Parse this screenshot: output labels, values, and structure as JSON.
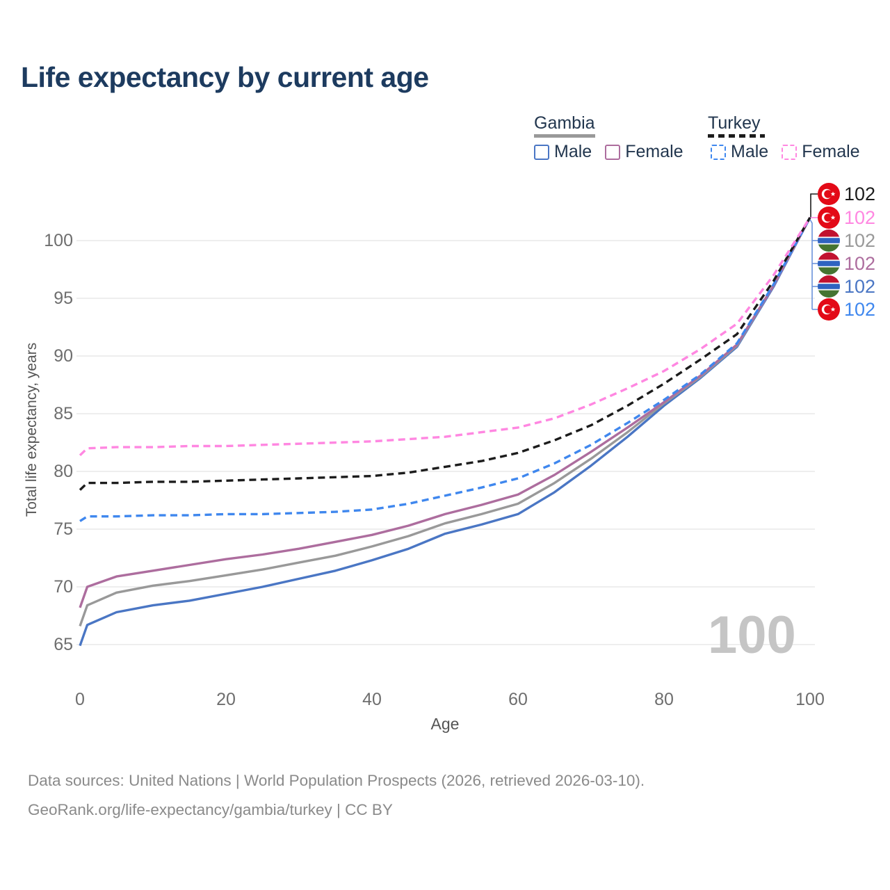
{
  "title": "Life expectancy by current age",
  "colors": {
    "gambia_male": "#4a76c4",
    "gambia_female": "#ad6d9e",
    "gambia_all": "#999999",
    "turkey_male": "#3f87ee",
    "turkey_female": "#ff87e1",
    "turkey_all": "#1c1c1c",
    "grid": "#e9e9e9",
    "title_text": "#1d3b5f",
    "tick_text": "#6e6e6e",
    "watermark_text": "#c5c5c5",
    "connector_bracket": "#6b93da",
    "flag_turkey_red": "#e30a17",
    "flag_gambia_red": "#c1122f",
    "flag_gambia_blue": "#2f63c1",
    "flag_gambia_green": "#457431"
  },
  "legend": {
    "groups": [
      {
        "name": "Gambia",
        "line_style": "solid",
        "underline_color": "#999999",
        "items": [
          {
            "label": "Male",
            "swatch": "gambia_male",
            "style": "solid"
          },
          {
            "label": "Female",
            "swatch": "gambia_female",
            "style": "solid"
          }
        ]
      },
      {
        "name": "Turkey",
        "line_style": "dashed",
        "underline_color": "#1c1c1c",
        "items": [
          {
            "label": "Male",
            "swatch": "turkey_male",
            "style": "dashed"
          },
          {
            "label": "Female",
            "swatch": "turkey_female",
            "style": "dashed"
          }
        ]
      }
    ]
  },
  "axis": {
    "y_title": "Total life expectancy, years",
    "x_title": "Age"
  },
  "chart_data": {
    "type": "line",
    "title": "Life expectancy by current age",
    "xlabel": "Age",
    "ylabel": "Total life expectancy, years",
    "xlim": [
      0,
      100
    ],
    "ylim": [
      65,
      100
    ],
    "note": "visible y gridline range is 65-100; all series converge at value 102 at age 100",
    "grid": "horizontal",
    "legend_position": "top-right",
    "x_ticks": [
      0,
      20,
      40,
      60,
      80,
      100
    ],
    "y_ticks": [
      65,
      70,
      75,
      80,
      85,
      90,
      95,
      100
    ],
    "x": [
      0,
      1,
      5,
      10,
      15,
      20,
      25,
      30,
      35,
      40,
      45,
      50,
      55,
      60,
      65,
      70,
      75,
      80,
      85,
      90,
      95,
      100
    ],
    "series": [
      {
        "name": "Gambia Male",
        "color_key": "gambia_male",
        "dash": false,
        "values": [
          64.9,
          66.7,
          67.8,
          68.4,
          68.8,
          69.4,
          70.0,
          70.7,
          71.4,
          72.3,
          73.3,
          74.6,
          75.4,
          76.3,
          78.2,
          80.5,
          83.0,
          85.7,
          88.1,
          90.8,
          96.0,
          102
        ]
      },
      {
        "name": "Gambia All",
        "color_key": "gambia_all",
        "dash": false,
        "values": [
          66.6,
          68.4,
          69.5,
          70.1,
          70.5,
          71.0,
          71.5,
          72.1,
          72.7,
          73.5,
          74.4,
          75.5,
          76.3,
          77.2,
          79.0,
          81.1,
          83.4,
          85.9,
          88.2,
          90.9,
          96.1,
          102
        ]
      },
      {
        "name": "Gambia Female",
        "color_key": "gambia_female",
        "dash": false,
        "values": [
          68.2,
          70.0,
          70.9,
          71.4,
          71.9,
          72.4,
          72.8,
          73.3,
          73.9,
          74.5,
          75.3,
          76.3,
          77.1,
          78.0,
          79.7,
          81.7,
          83.8,
          86.0,
          88.3,
          91.0,
          96.1,
          102
        ]
      },
      {
        "name": "Turkey Male",
        "color_key": "turkey_male",
        "dash": true,
        "values": [
          75.7,
          76.1,
          76.1,
          76.2,
          76.2,
          76.3,
          76.3,
          76.4,
          76.5,
          76.7,
          77.2,
          77.9,
          78.6,
          79.4,
          80.7,
          82.3,
          84.2,
          86.2,
          88.4,
          91.1,
          96.2,
          102
        ]
      },
      {
        "name": "Turkey All",
        "color_key": "turkey_all",
        "dash": true,
        "values": [
          78.4,
          79.0,
          79.0,
          79.1,
          79.1,
          79.2,
          79.3,
          79.4,
          79.5,
          79.6,
          79.9,
          80.4,
          80.9,
          81.6,
          82.7,
          84.0,
          85.7,
          87.6,
          89.7,
          91.9,
          96.5,
          102
        ]
      },
      {
        "name": "Turkey Female",
        "color_key": "turkey_female",
        "dash": true,
        "values": [
          81.4,
          82.0,
          82.1,
          82.1,
          82.2,
          82.2,
          82.3,
          82.4,
          82.5,
          82.6,
          82.8,
          83.0,
          83.4,
          83.8,
          84.6,
          85.8,
          87.2,
          88.7,
          90.6,
          92.8,
          97.0,
          102
        ]
      }
    ]
  },
  "end_labels": [
    {
      "flag": "turkey",
      "value": "102",
      "color_key": "turkey_all"
    },
    {
      "flag": "turkey",
      "value": "102",
      "color_key": "turkey_female"
    },
    {
      "flag": "gambia",
      "value": "102",
      "color_key": "gambia_all"
    },
    {
      "flag": "gambia",
      "value": "102",
      "color_key": "gambia_female"
    },
    {
      "flag": "gambia",
      "value": "102",
      "color_key": "gambia_male"
    },
    {
      "flag": "turkey",
      "value": "102",
      "color_key": "turkey_male"
    }
  ],
  "watermark": "100",
  "source": {
    "line1": "Data sources: United Nations | World Population Prospects (2026, retrieved 2026-03-10).",
    "line2": "GeoRank.org/life-expectancy/gambia/turkey | CC BY"
  }
}
